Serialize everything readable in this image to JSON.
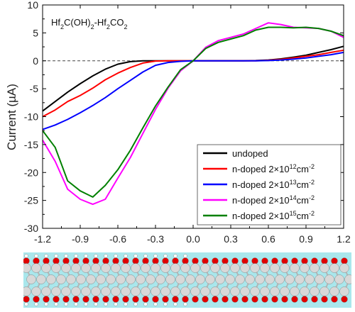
{
  "chart_data": {
    "type": "line",
    "title": "",
    "formula_label": {
      "parts": [
        {
          "t": "Hf",
          "sub": false
        },
        {
          "t": "2",
          "sub": true
        },
        {
          "t": "C(OH)",
          "sub": false
        },
        {
          "t": "2",
          "sub": true
        },
        {
          "t": "-Hf",
          "sub": false
        },
        {
          "t": "2",
          "sub": true
        },
        {
          "t": "CO",
          "sub": false
        },
        {
          "t": "2",
          "sub": true
        }
      ]
    },
    "xlabel": "",
    "ylabel": "Current (µA)",
    "xlim": [
      -1.2,
      1.2
    ],
    "ylim": [
      -30,
      10
    ],
    "xticks": [
      "-1.2",
      "-0.9",
      "-0.6",
      "-0.3",
      "0.0",
      "0.3",
      "0.6",
      "0.9",
      "1.2"
    ],
    "yticks": [
      "10",
      "5",
      "0",
      "-5",
      "-10",
      "-15",
      "-20",
      "-25",
      "-30"
    ],
    "grid": false,
    "zero_reference_line": true,
    "legend_position": "bottom-right",
    "series": [
      {
        "name": "undoped",
        "sup": "",
        "color": "#000000",
        "x": [
          -1.2,
          -1.1,
          -1.0,
          -0.9,
          -0.8,
          -0.7,
          -0.6,
          -0.5,
          -0.4,
          -0.3,
          -0.2,
          -0.1,
          0.0,
          0.1,
          0.2,
          0.3,
          0.4,
          0.5,
          0.6,
          0.7,
          0.8,
          0.9,
          1.0,
          1.1,
          1.2
        ],
        "values": [
          -9.0,
          -7.3,
          -5.6,
          -4.1,
          -2.7,
          -1.5,
          -0.6,
          -0.15,
          0.0,
          0.0,
          0.0,
          0.0,
          0.0,
          0.0,
          0.0,
          0.0,
          0.0,
          0.05,
          0.15,
          0.35,
          0.65,
          1.0,
          1.5,
          2.0,
          2.6
        ]
      },
      {
        "name": "n-doped 2×10",
        "sup": "12",
        "unit": "cm",
        "unit_sup": "-2",
        "color": "#ff0000",
        "x": [
          -1.2,
          -1.1,
          -1.0,
          -0.9,
          -0.8,
          -0.7,
          -0.6,
          -0.5,
          -0.4,
          -0.3,
          -0.2,
          -0.1,
          0.0,
          0.1,
          0.2,
          0.3,
          0.4,
          0.5,
          0.6,
          0.7,
          0.8,
          0.9,
          1.0,
          1.1,
          1.2
        ],
        "values": [
          -10.0,
          -8.8,
          -7.3,
          -6.2,
          -4.9,
          -3.4,
          -2.2,
          -1.2,
          -0.4,
          -0.05,
          0.0,
          0.0,
          0.0,
          0.0,
          0.0,
          0.0,
          0.0,
          0.0,
          0.1,
          0.25,
          0.5,
          0.8,
          1.1,
          1.5,
          1.9
        ]
      },
      {
        "name": "n-doped 2×10",
        "sup": "13",
        "unit": "cm",
        "unit_sup": "-2",
        "color": "#0000ff",
        "x": [
          -1.2,
          -1.1,
          -1.0,
          -0.9,
          -0.8,
          -0.7,
          -0.6,
          -0.5,
          -0.4,
          -0.3,
          -0.2,
          -0.1,
          0.0,
          0.1,
          0.2,
          0.3,
          0.4,
          0.5,
          0.6,
          0.7,
          0.8,
          0.9,
          1.0,
          1.1,
          1.2
        ],
        "values": [
          -12.3,
          -11.5,
          -10.5,
          -9.3,
          -8.0,
          -6.6,
          -5.0,
          -3.5,
          -2.0,
          -0.8,
          -0.3,
          -0.1,
          0.0,
          0.0,
          0.0,
          0.0,
          0.0,
          0.0,
          0.05,
          0.15,
          0.3,
          0.5,
          0.8,
          1.1,
          1.5
        ]
      },
      {
        "name": "n-doped 2×10",
        "sup": "14",
        "unit": "cm",
        "unit_sup": "-2",
        "color": "#ff00ff",
        "x": [
          -1.2,
          -1.1,
          -1.0,
          -0.9,
          -0.8,
          -0.7,
          -0.6,
          -0.5,
          -0.4,
          -0.3,
          -0.2,
          -0.1,
          0.0,
          0.1,
          0.2,
          0.3,
          0.4,
          0.5,
          0.6,
          0.7,
          0.8,
          0.9,
          1.0,
          1.1,
          1.2
        ],
        "values": [
          -14.2,
          -18.0,
          -23.0,
          -24.8,
          -25.7,
          -24.8,
          -21.0,
          -17.3,
          -13.0,
          -8.7,
          -4.9,
          -1.8,
          0.0,
          2.4,
          3.6,
          4.2,
          4.8,
          5.8,
          6.8,
          6.5,
          6.0,
          5.9,
          5.8,
          5.3,
          4.2
        ]
      },
      {
        "name": "n-doped 2×10",
        "sup": "15",
        "unit": "cm",
        "unit_sup": "-2",
        "color": "#008000",
        "x": [
          -1.2,
          -1.1,
          -1.0,
          -0.9,
          -0.8,
          -0.7,
          -0.6,
          -0.5,
          -0.4,
          -0.3,
          -0.2,
          -0.1,
          0.0,
          0.1,
          0.2,
          0.3,
          0.4,
          0.5,
          0.6,
          0.7,
          0.8,
          0.9,
          1.0,
          1.1,
          1.2
        ],
        "values": [
          -12.5,
          -15.5,
          -21.5,
          -23.3,
          -24.4,
          -22.3,
          -19.5,
          -16.0,
          -12.0,
          -8.1,
          -4.7,
          -1.6,
          0.0,
          2.2,
          3.3,
          3.9,
          4.5,
          5.5,
          6.0,
          6.0,
          5.9,
          6.0,
          5.8,
          5.3,
          4.5
        ]
      }
    ]
  },
  "structure_strip": {
    "background": "#a9e7ec",
    "atom_colors": {
      "hf": "#d8d8d8",
      "oxygen": "#e00000",
      "hydrogen": "#ffffff",
      "bond": "#b5b5b5"
    }
  }
}
